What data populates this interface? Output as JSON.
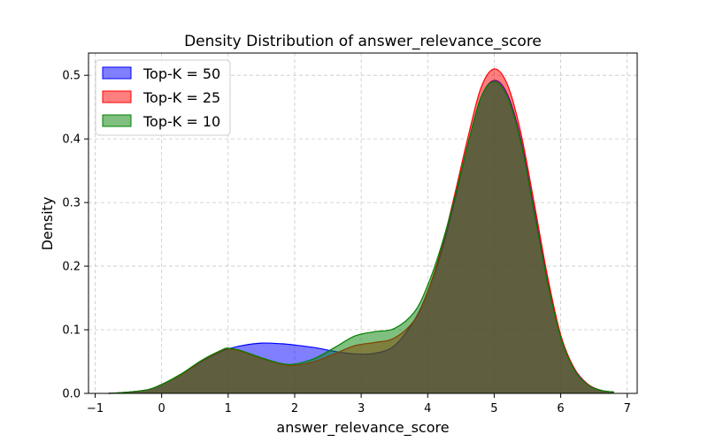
{
  "chart_data": {
    "type": "area",
    "title": "Density Distribution of answer_relevance_score",
    "xlabel": "answer_relevance_score",
    "ylabel": "Density",
    "xlim": [
      -1.1,
      7.15
    ],
    "ylim": [
      0,
      0.535
    ],
    "xticks": [
      -1,
      0,
      1,
      2,
      3,
      4,
      5,
      6,
      7
    ],
    "xtick_labels": [
      "−1",
      "0",
      "1",
      "2",
      "3",
      "4",
      "5",
      "6",
      "7"
    ],
    "yticks": [
      0.0,
      0.1,
      0.2,
      0.3,
      0.4,
      0.5
    ],
    "ytick_labels": [
      "0.0",
      "0.1",
      "0.2",
      "0.3",
      "0.4",
      "0.5"
    ],
    "grid": true,
    "legend_position": "top-left",
    "series": [
      {
        "name": "Top-K = 50",
        "color": "#0000ff",
        "fill_opacity": 0.5,
        "x": [
          -0.8,
          -0.5,
          -0.2,
          0,
          0.3,
          0.6,
          0.9,
          1.0,
          1.2,
          1.5,
          1.8,
          2.0,
          2.3,
          2.6,
          2.9,
          3.2,
          3.5,
          3.8,
          4.0,
          4.2,
          4.4,
          4.6,
          4.8,
          5.0,
          5.2,
          5.4,
          5.6,
          5.8,
          6.0,
          6.2,
          6.4,
          6.6,
          6.8
        ],
        "y": [
          0.0,
          0.002,
          0.006,
          0.014,
          0.03,
          0.05,
          0.066,
          0.07,
          0.075,
          0.079,
          0.078,
          0.076,
          0.072,
          0.066,
          0.062,
          0.063,
          0.075,
          0.115,
          0.16,
          0.22,
          0.3,
          0.39,
          0.465,
          0.492,
          0.47,
          0.4,
          0.29,
          0.18,
          0.09,
          0.04,
          0.015,
          0.005,
          0.002
        ]
      },
      {
        "name": "Top-K = 25",
        "color": "#ff0000",
        "fill_opacity": 0.5,
        "x": [
          -0.8,
          -0.5,
          -0.2,
          0,
          0.3,
          0.6,
          0.9,
          1.0,
          1.2,
          1.5,
          1.8,
          2.0,
          2.3,
          2.6,
          2.9,
          3.2,
          3.5,
          3.8,
          4.0,
          4.2,
          4.4,
          4.6,
          4.8,
          5.0,
          5.2,
          5.4,
          5.6,
          5.8,
          6.0,
          6.2,
          6.4,
          6.6,
          6.8
        ],
        "y": [
          0.0,
          0.002,
          0.006,
          0.014,
          0.03,
          0.051,
          0.067,
          0.07,
          0.066,
          0.055,
          0.046,
          0.044,
          0.05,
          0.062,
          0.075,
          0.08,
          0.087,
          0.115,
          0.16,
          0.225,
          0.31,
          0.4,
          0.48,
          0.51,
          0.485,
          0.41,
          0.3,
          0.185,
          0.092,
          0.04,
          0.015,
          0.005,
          0.002
        ]
      },
      {
        "name": "Top-K = 10",
        "color": "#008000",
        "fill_opacity": 0.5,
        "x": [
          -0.8,
          -0.5,
          -0.2,
          0,
          0.3,
          0.6,
          0.9,
          1.0,
          1.2,
          1.5,
          1.8,
          2.0,
          2.3,
          2.6,
          2.9,
          3.2,
          3.5,
          3.8,
          4.0,
          4.2,
          4.4,
          4.6,
          4.8,
          5.0,
          5.2,
          5.4,
          5.6,
          5.8,
          6.0,
          6.2,
          6.4,
          6.6,
          6.8
        ],
        "y": [
          0.0,
          0.002,
          0.006,
          0.014,
          0.031,
          0.052,
          0.068,
          0.071,
          0.067,
          0.056,
          0.047,
          0.046,
          0.055,
          0.072,
          0.09,
          0.097,
          0.102,
          0.128,
          0.17,
          0.23,
          0.305,
          0.39,
          0.465,
          0.49,
          0.465,
          0.395,
          0.285,
          0.175,
          0.088,
          0.038,
          0.014,
          0.005,
          0.002
        ]
      }
    ]
  }
}
